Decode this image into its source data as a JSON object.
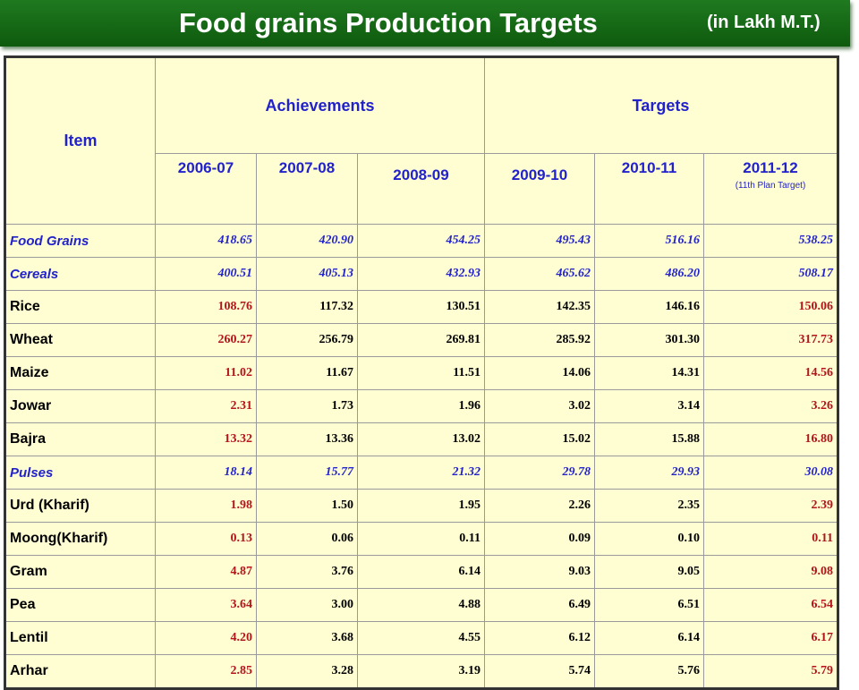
{
  "header": {
    "title": "Food grains Production Targets",
    "units": "(in Lakh M.T.)"
  },
  "columns": {
    "item": "Item",
    "achievements": "Achievements",
    "targets": "Targets",
    "years": [
      "2006-07",
      "2007-08",
      "2008-09",
      "2009-10",
      "2010-11",
      "2011-12"
    ],
    "year_note": "(11th Plan Target)"
  },
  "colors": {
    "title_bar": "#1f7a1f",
    "table_bg": "#fffed2",
    "header_text": "#2222cc",
    "red_value": "#b3151b"
  },
  "rows": [
    {
      "item": "Food Grains",
      "kind": "group",
      "values": [
        "418.65",
        "420.90",
        "454.25",
        "495.43",
        "516.16",
        "538.25"
      ]
    },
    {
      "item": "Cereals",
      "kind": "group",
      "values": [
        "400.51",
        "405.13",
        "432.93",
        "465.62",
        "486.20",
        "508.17"
      ]
    },
    {
      "item": "Rice",
      "kind": "crop",
      "values": [
        "108.76",
        "117.32",
        "130.51",
        "142.35",
        "146.16",
        "150.06"
      ]
    },
    {
      "item": "Wheat",
      "kind": "crop",
      "values": [
        "260.27",
        "256.79",
        "269.81",
        "285.92",
        "301.30",
        "317.73"
      ]
    },
    {
      "item": "Maize",
      "kind": "crop",
      "values": [
        "11.02",
        "11.67",
        "11.51",
        "14.06",
        "14.31",
        "14.56"
      ]
    },
    {
      "item": "Jowar",
      "kind": "crop",
      "values": [
        "2.31",
        "1.73",
        "1.96",
        "3.02",
        "3.14",
        "3.26"
      ]
    },
    {
      "item": "Bajra",
      "kind": "crop",
      "values": [
        "13.32",
        "13.36",
        "13.02",
        "15.02",
        "15.88",
        "16.80"
      ]
    },
    {
      "item": "Pulses",
      "kind": "group",
      "values": [
        "18.14",
        "15.77",
        "21.32",
        "29.78",
        "29.93",
        "30.08"
      ]
    },
    {
      "item": "Urd (Kharif)",
      "kind": "crop",
      "values": [
        "1.98",
        "1.50",
        "1.95",
        "2.26",
        "2.35",
        "2.39"
      ]
    },
    {
      "item": "Moong(Kharif)",
      "kind": "crop",
      "values": [
        "0.13",
        "0.06",
        "0.11",
        "0.09",
        "0.10",
        "0.11"
      ]
    },
    {
      "item": "Gram",
      "kind": "crop",
      "values": [
        "4.87",
        "3.76",
        "6.14",
        "9.03",
        "9.05",
        "9.08"
      ]
    },
    {
      "item": "Pea",
      "kind": "crop",
      "values": [
        "3.64",
        "3.00",
        "4.88",
        "6.49",
        "6.51",
        "6.54"
      ]
    },
    {
      "item": "Lentil",
      "kind": "crop",
      "values": [
        "4.20",
        "3.68",
        "4.55",
        "6.12",
        "6.14",
        "6.17"
      ]
    },
    {
      "item": "Arhar",
      "kind": "crop",
      "values": [
        "2.85",
        "3.28",
        "3.19",
        "5.74",
        "5.76",
        "5.79"
      ]
    }
  ]
}
